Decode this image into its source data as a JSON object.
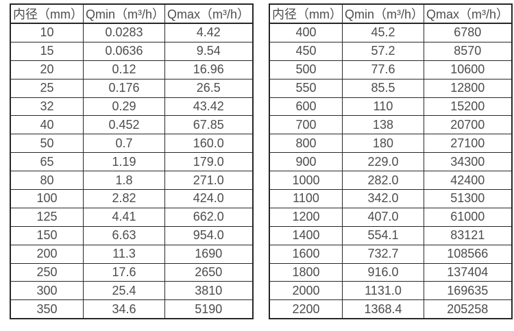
{
  "colors": {
    "background": "#ffffff",
    "border": "#262626",
    "text": "#4d4d4d"
  },
  "chart_data": [
    {
      "type": "table",
      "title": "",
      "columns": [
        "内径（mm）",
        "Qmin（m³/h）",
        "Qmax（m³/h）"
      ],
      "rows": [
        [
          "10",
          "0.0283",
          "4.42"
        ],
        [
          "15",
          "0.0636",
          "9.54"
        ],
        [
          "20",
          "0.12",
          "16.96"
        ],
        [
          "25",
          "0.176",
          "26.5"
        ],
        [
          "32",
          "0.29",
          "43.42"
        ],
        [
          "40",
          "0.452",
          "67.85"
        ],
        [
          "50",
          "0.7",
          "160.0"
        ],
        [
          "65",
          "1.19",
          "179.0"
        ],
        [
          "80",
          "1.8",
          "271.0"
        ],
        [
          "100",
          "2.82",
          "424.0"
        ],
        [
          "125",
          "4.41",
          "662.0"
        ],
        [
          "150",
          "6.63",
          "954.0"
        ],
        [
          "200",
          "11.3",
          "1690"
        ],
        [
          "250",
          "17.6",
          "2650"
        ],
        [
          "300",
          "25.4",
          "3810"
        ],
        [
          "350",
          "34.6",
          "5190"
        ]
      ]
    },
    {
      "type": "table",
      "title": "",
      "columns": [
        "内径（mm）",
        "Qmin（m³/h）",
        "Qmax（m³/h）"
      ],
      "rows": [
        [
          "400",
          "45.2",
          "6780"
        ],
        [
          "450",
          "57.2",
          "8570"
        ],
        [
          "500",
          "77.6",
          "10600"
        ],
        [
          "550",
          "85.5",
          "12800"
        ],
        [
          "600",
          "110",
          "15200"
        ],
        [
          "700",
          "138",
          "20700"
        ],
        [
          "800",
          "180",
          "27100"
        ],
        [
          "900",
          "229.0",
          "34300"
        ],
        [
          "1000",
          "282.0",
          "42400"
        ],
        [
          "1100",
          "342.0",
          "51300"
        ],
        [
          "1200",
          "407.0",
          "61000"
        ],
        [
          "1400",
          "554.1",
          "83121"
        ],
        [
          "1600",
          "732.7",
          "108566"
        ],
        [
          "1800",
          "916.0",
          "137404"
        ],
        [
          "2000",
          "1131.0",
          "169635"
        ],
        [
          "2200",
          "1368.4",
          "205258"
        ]
      ]
    }
  ]
}
